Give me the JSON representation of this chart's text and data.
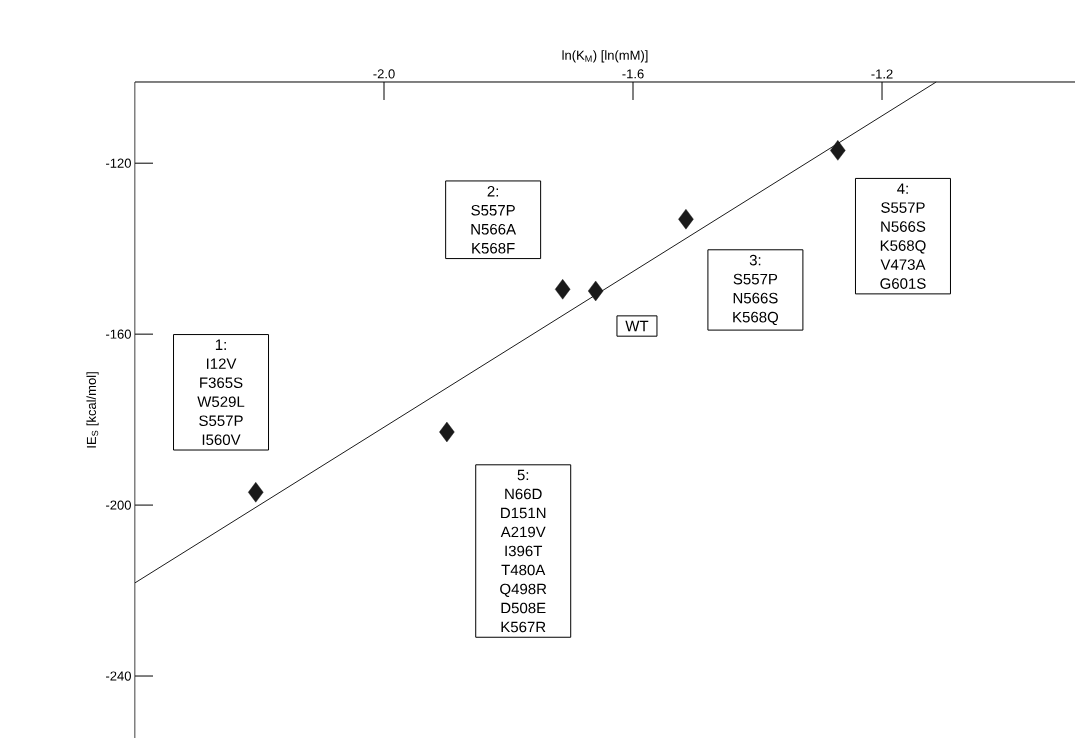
{
  "chart_data": {
    "type": "scatter",
    "xlabel": "ln(K$_{M}$) [ln(mM)]",
    "ylabel": "IE$_{S}$ [kcal/mol]",
    "xlim": [
      -2.4,
      -0.89
    ],
    "ylim": [
      -254.5,
      -101
    ],
    "xticks": [
      {
        "value": -2.0,
        "label": "-2.0"
      },
      {
        "value": -1.6,
        "label": "-1.6"
      },
      {
        "value": -1.2,
        "label": "-1.2"
      }
    ],
    "yticks": [
      -120,
      -160,
      -200,
      -240
    ],
    "marker": "diamond",
    "grid": false,
    "series": [
      {
        "color": "#1a1a1a",
        "x": [
          -2.206,
          -1.899,
          -1.713,
          -1.66,
          -1.515,
          -1.271
        ],
        "values": [
          -197.0,
          -182.9,
          -149.5,
          -149.9,
          -133.1,
          -117.0
        ]
      },
      {
        "type": "line",
        "color": "#1a1a1a",
        "marker": "none",
        "x": [
          -2.4,
          -1.113
        ],
        "values": [
          -218.2,
          -101
        ]
      }
    ],
    "annotations": [
      "1: I12V F365S W529L S557P I560V",
      "2: S557P N566A K568F",
      "WT",
      "3: S557P N566S K568Q",
      "4: S557P N566S K568Q V473A G601S",
      "5: N66D D151N A219V I396T T480A Q498R D508E K567R"
    ]
  }
}
